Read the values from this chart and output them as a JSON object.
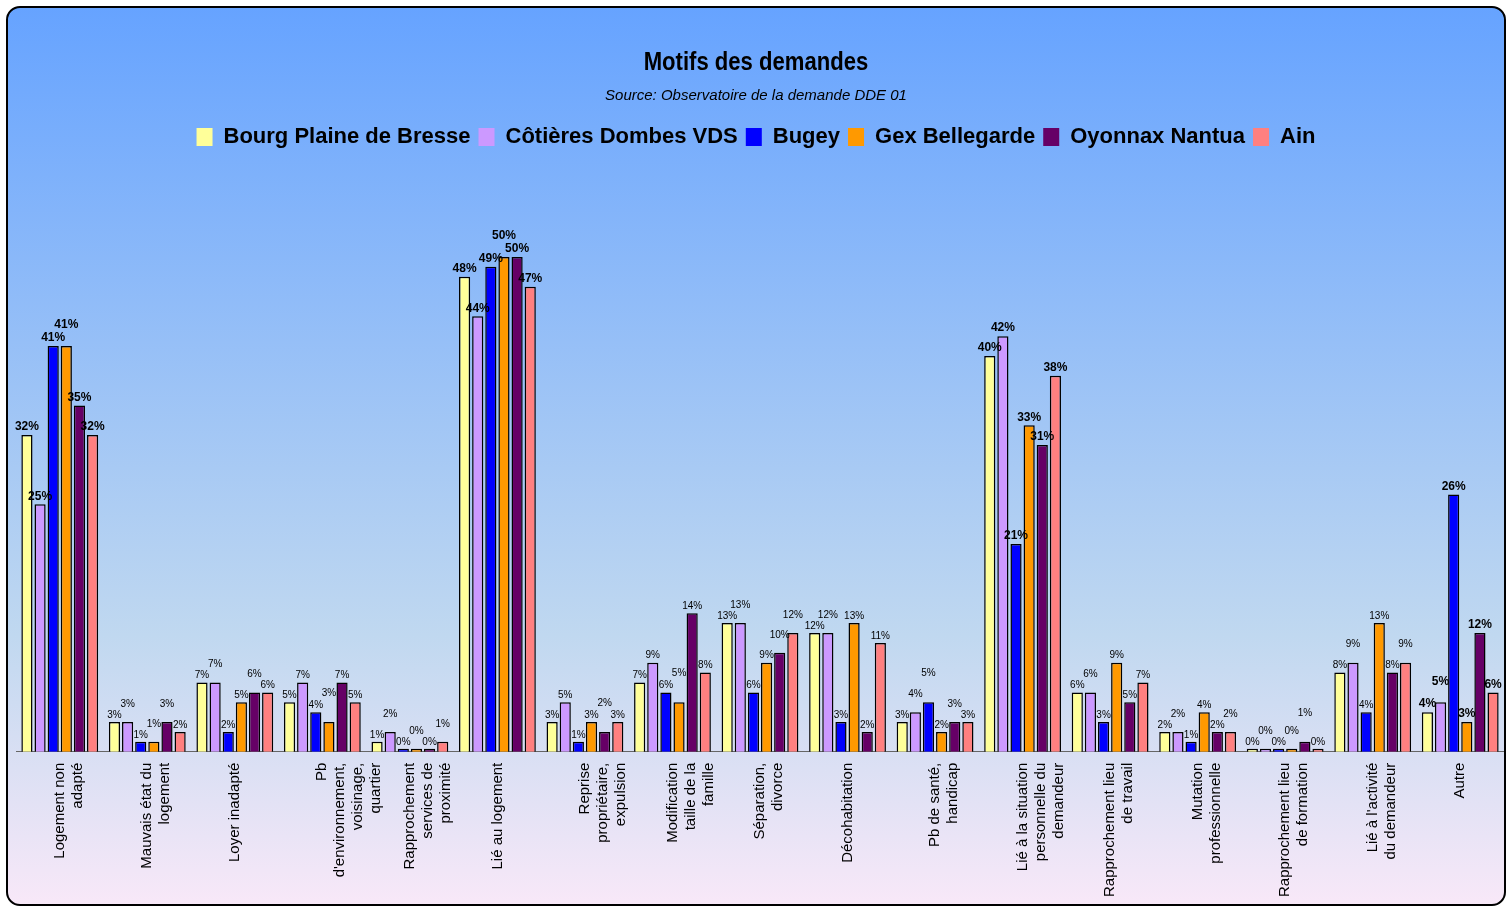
{
  "chart_data": {
    "type": "bar",
    "title": "Motifs des demandes",
    "subtitle": "Source: Observatoire de la demande DDE 01",
    "categories": [
      "Logement non adapté",
      "Mauvais état du logement",
      "Loyer inadapté",
      "Pb d'environnement, voisinage, quartier",
      "Rapprochement services de proximité",
      "Lié au logement",
      "Reprise propriétaire, expulsion",
      "Modification taille de la famille",
      "Séparation, divorce",
      "Décohabitation",
      "Pb de santé, handicap",
      "Lié à la situation personnelle du demandeur",
      "Rapprochement lieu de travail",
      "Mutation professionnelle",
      "Rapprochement lieu de formation",
      "Lié à l'activité du demandeur",
      "Autre"
    ],
    "series": [
      {
        "name": "Bourg Plaine de Bresse",
        "color": "#ffff99",
        "values": [
          32,
          3,
          7,
          5,
          1,
          48,
          3,
          7,
          13,
          12,
          3,
          40,
          6,
          2,
          0,
          8,
          4
        ],
        "value_labels": [
          "32%",
          "3%",
          "7%",
          "5%",
          "1%",
          "48%",
          "3%",
          "7%",
          "13%",
          "12%",
          "3%",
          "40%",
          "6%",
          "2%",
          "0%",
          "8%",
          "4%"
        ]
      },
      {
        "name": "Côtières Dombes VDS",
        "color": "#cc99ff",
        "values": [
          25,
          3,
          7,
          7,
          2,
          44,
          5,
          9,
          13,
          12,
          4,
          42,
          6,
          2,
          0,
          9,
          5
        ],
        "value_labels": [
          "25%",
          "3%",
          "7%",
          "7%",
          "2%",
          "44%",
          "5%",
          "9%",
          "13%",
          "12%",
          "4%",
          "42%",
          "6%",
          "2%",
          "0%",
          "9%",
          "5%"
        ]
      },
      {
        "name": "Bugey",
        "color": "#0000ff",
        "values": [
          41,
          1,
          2,
          4,
          0,
          49,
          1,
          6,
          6,
          3,
          5,
          21,
          3,
          1,
          0,
          4,
          26
        ],
        "value_labels": [
          "41%",
          "1%",
          "2%",
          "4%",
          "0%",
          "49%",
          "1%",
          "6%",
          "6%",
          "3%",
          "5%",
          "21%",
          "3%",
          "1%",
          "0%",
          "4%",
          "26%"
        ]
      },
      {
        "name": "Gex Bellegarde",
        "color": "#ff9900",
        "values": [
          41,
          1,
          5,
          3,
          0,
          50,
          3,
          5,
          9,
          13,
          2,
          33,
          9,
          4,
          0,
          13,
          3
        ],
        "value_labels": [
          "41%",
          "1%",
          "5%",
          "3%",
          "0%",
          "50%",
          "3%",
          "5%",
          "9%",
          "13%",
          "2%",
          "33%",
          "9%",
          "4%",
          "0%",
          "13%",
          "3%"
        ]
      },
      {
        "name": "Oyonnax Nantua",
        "color": "#660066",
        "values": [
          35,
          3,
          6,
          7,
          0,
          50,
          2,
          14,
          10,
          2,
          3,
          31,
          5,
          2,
          1,
          8,
          12
        ],
        "value_labels": [
          "35%",
          "3%",
          "6%",
          "7%",
          "0%",
          "50%",
          "2%",
          "14%",
          "10%",
          "2%",
          "3%",
          "31%",
          "5%",
          "2%",
          "1%",
          "8%",
          "12%"
        ]
      },
      {
        "name": "Ain",
        "color": "#ff8080",
        "values": [
          32,
          2,
          6,
          5,
          1,
          47,
          3,
          8,
          12,
          11,
          3,
          38,
          7,
          2,
          0,
          9,
          6
        ],
        "value_labels": [
          "32%",
          "2%",
          "6%",
          "5%",
          "1%",
          "47%",
          "3%",
          "8%",
          "12%",
          "11%",
          "3%",
          "38%",
          "7%",
          "2%",
          "0%",
          "9%",
          "6%"
        ]
      }
    ],
    "legend": "top",
    "grid": false,
    "tick_labels": "x"
  }
}
